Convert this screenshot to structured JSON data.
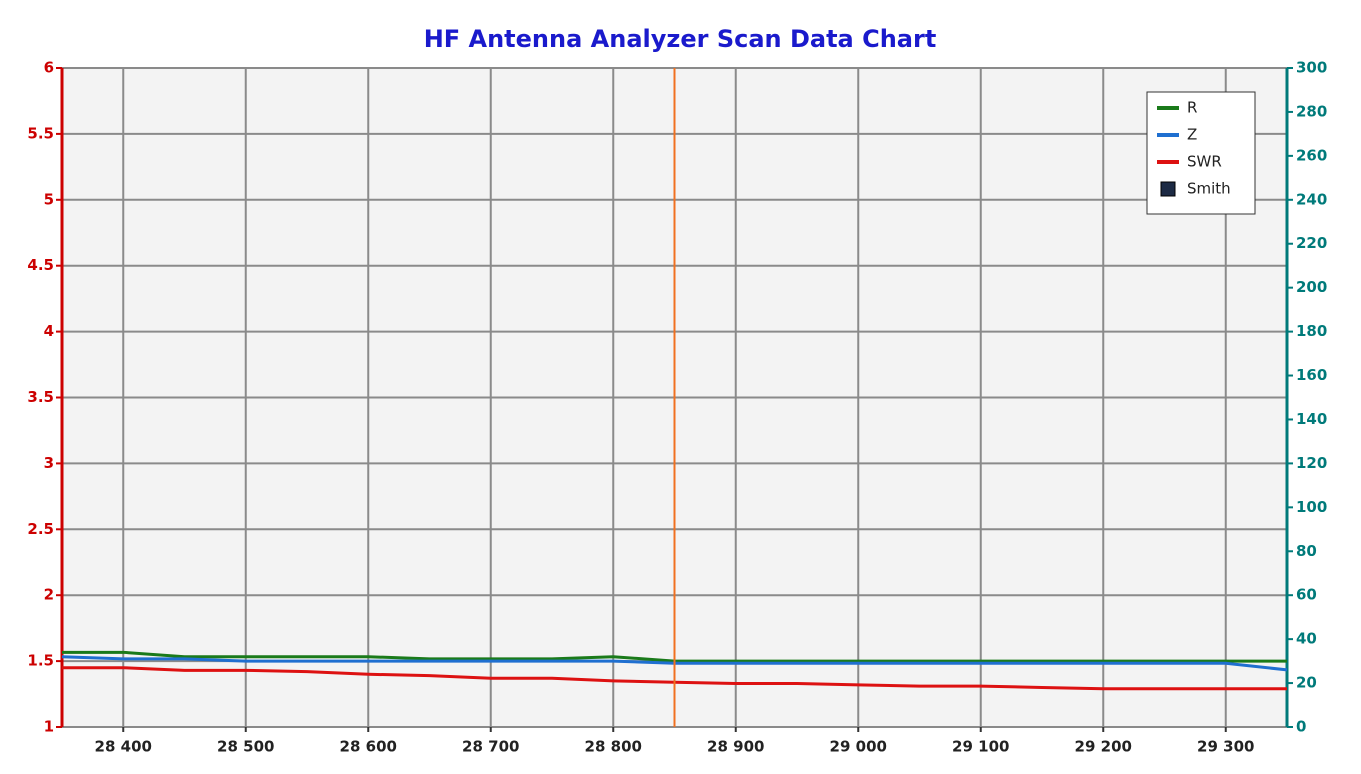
{
  "chart_data": {
    "type": "line",
    "title": "HF Antenna Analyzer Scan Data Chart",
    "x": [
      28350,
      28400,
      28450,
      28500,
      28550,
      28600,
      28650,
      28700,
      28750,
      28800,
      28850,
      28900,
      28950,
      29000,
      29050,
      29100,
      29150,
      29200,
      29250,
      29300,
      29350
    ],
    "series": [
      {
        "name": "R",
        "color": "#1a7a1a",
        "axis": "y2",
        "values": [
          34,
          34,
          32,
          32,
          32,
          32,
          31,
          31,
          31,
          32,
          30,
          30,
          30,
          30,
          30,
          30,
          30,
          30,
          30,
          30,
          30
        ]
      },
      {
        "name": "Z",
        "color": "#1f6fd0",
        "axis": "y2",
        "values": [
          32,
          31,
          31,
          30,
          30,
          30,
          30,
          30,
          30,
          30,
          29,
          29,
          29,
          29,
          29,
          29,
          29,
          29,
          29,
          29,
          26
        ]
      },
      {
        "name": "SWR",
        "color": "#dd1111",
        "values": [
          1.45,
          1.45,
          1.43,
          1.43,
          1.42,
          1.4,
          1.39,
          1.37,
          1.37,
          1.35,
          1.34,
          1.33,
          1.33,
          1.32,
          1.31,
          1.31,
          1.3,
          1.29,
          1.29,
          1.29,
          1.29
        ]
      }
    ],
    "extra_legend": [
      {
        "name": "Smith",
        "color": "#1c2a44"
      }
    ],
    "marker": 28850,
    "marker_color": "#f07020",
    "xlim": [
      28350,
      29350
    ],
    "xticks": [
      {
        "value": 28400,
        "label": "28 400"
      },
      {
        "value": 28500,
        "label": "28 500"
      },
      {
        "value": 28600,
        "label": "28 600"
      },
      {
        "value": 28700,
        "label": "28 700"
      },
      {
        "value": 28800,
        "label": "28 800"
      },
      {
        "value": 28900,
        "label": "28 900"
      },
      {
        "value": 29000,
        "label": "29 000"
      },
      {
        "value": 29100,
        "label": "29 100"
      },
      {
        "value": 29200,
        "label": "29 200"
      },
      {
        "value": 29300,
        "label": "29 300"
      }
    ],
    "ylim": [
      1,
      6
    ],
    "yticks": [
      1,
      1.5,
      2,
      2.5,
      3,
      3.5,
      4,
      4.5,
      5,
      5.5,
      6
    ],
    "y_color": "#cc0000",
    "y2lim": [
      0,
      300
    ],
    "y2ticks": [
      0,
      20,
      40,
      60,
      80,
      100,
      120,
      140,
      160,
      180,
      200,
      220,
      240,
      260,
      280,
      300
    ],
    "y2_color": "#007a7a",
    "grid": true,
    "legend": "upper right"
  }
}
